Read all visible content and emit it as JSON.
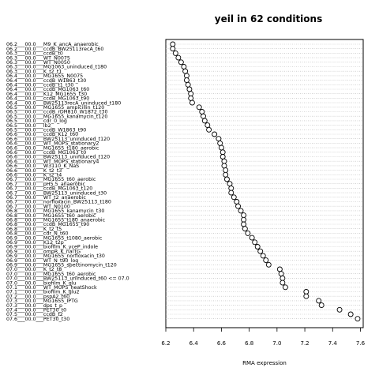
{
  "chart_data": {
    "type": "scatter",
    "title": "yeil in 62 conditions",
    "xlabel": "RMA expression",
    "ylabel": "",
    "xlim": [
      6.2,
      7.62
    ],
    "xticks": [
      "6.2",
      "6.4",
      "6.6",
      "6.8",
      "7.0",
      "7.2",
      "7.4",
      "7.6"
    ],
    "grid": "horizontal dotted lines",
    "legend": "none",
    "marker": "open circle",
    "categories": [
      "06.2___00.0___M9_K_ancA_anaerobic",
      "06.2___00.0___ccdB_BW25113recA_t60",
      "06.3___00.0___ccdB_t0",
      "06.3___00.0___WT_N0075",
      "06.3___00.0___WT_N0050",
      "06.3___00.0___MG1063_uninduced_t180",
      "06.3___00.0___K_t2_t1",
      "06.4___00.0___MG1655_N0075",
      "06.4___00.0___ccdB_W1863_t30",
      "06.4___00.0___ccdB_t1_t30",
      "06.4___00.0___ccdB_MG1063_t60",
      "06.4___00.0___K12_MG1655_t30",
      "06.4___00.0___ccdB_MG1063_t90",
      "06.4___00.0___BW25113recA_uninduced_t180",
      "06.5___00.0___MG1655_ampicillin_t120",
      "06.5___00.0___ccdB_rDH810_W1872_t30",
      "06.5___00.0___MG1655_kanamycin_t120",
      "06.5___00.0___cdr_0_log",
      "06.5___00.0___lb2",
      "06.5___00.0___ccdB_W1863_t90",
      "06.6___00.0___ccdB_K12_t60",
      "06.6___00.0___BW25113_uninduced_t120",
      "06.6___00.0___WT_MOPS_stationary2",
      "06.6___00.0___MG1655_t180_aerobic",
      "06.6___00.0___ccdB_MG1063_t0",
      "06.6___00.0___BW25113_uninduced_t120",
      "06.6___00.0___WT_MOPS_stationary4",
      "06.6___00.0___W3110_K_NaS",
      "06.6___00.0___K_t2_t3",
      "06.6___00.0___K_t2_t4",
      "06.7___00.0___MG1655_t60_aerobic",
      "06.7___00.0___pH5.5_anaerobic",
      "06.7___00.0___ccdB_MG1063_t120",
      "06.7___00.0___BW25113_uninduced_t30",
      "06.7___00.0___WT_t2_anaerobic",
      "06.7___00.0___norfloxacin_BW25113_t180",
      "06.7___00.0___WT_N0100",
      "06.8___00.0___MG1655_kanamycin_t30",
      "06.8___00.0___MG1655_t60_aerobic",
      "06.8___00.0___MG1655_t180_anaerobic",
      "06.8___00.0___ccdB_MG1655_t90",
      "06.8___00.0___K_t2_t5",
      "06.8___00.0___cdr_N_t60",
      "06.9___00.0___MG1655_t1080_aerobic",
      "06.9___00.0___K12_t2p",
      "06.9___00.0___biofilm_K_yceP_indole",
      "06.9___00.0___ompR_K_nalTG",
      "06.9___00.0___MG1655_norfloxacin_t30",
      "06.9___00.0___WT_N_t90_log",
      "06.9___00.0___MG1655_spectinomycin_t120",
      "07.0___00.0___K_t2_t8",
      "07.0___00.0___MG1655_t60_aerobic",
      "07.0___00.0___BW25113_uninduced_t60 <= 07.0",
      "07.0___00.0___biofilm_K_glu",
      "07.1___00.0___WT_MOPS_heatShock",
      "07.1___00.0___biofilm_K_glu2",
      "07.2___00.0___pspA2_t60",
      "07.3___00.0___MG1655_IPTG",
      "07.3___00.0___dps_t_p",
      "07.4___00.0___PET30_t0",
      "07.5___00.0___ccdB_t2",
      "07.6___00.0___PET30_t30"
    ],
    "values": [
      6.25,
      6.25,
      6.27,
      6.29,
      6.31,
      6.33,
      6.34,
      6.35,
      6.35,
      6.36,
      6.37,
      6.38,
      6.38,
      6.39,
      6.44,
      6.46,
      6.47,
      6.48,
      6.5,
      6.51,
      6.55,
      6.58,
      6.59,
      6.6,
      6.61,
      6.61,
      6.62,
      6.62,
      6.63,
      6.63,
      6.64,
      6.66,
      6.67,
      6.67,
      6.69,
      6.71,
      6.72,
      6.74,
      6.76,
      6.76,
      6.76,
      6.77,
      6.79,
      6.82,
      6.84,
      6.86,
      6.88,
      6.9,
      6.92,
      6.94,
      7.02,
      7.03,
      7.04,
      7.04,
      7.06,
      7.21,
      7.21,
      7.3,
      7.32,
      7.45,
      7.53,
      7.58
    ]
  }
}
